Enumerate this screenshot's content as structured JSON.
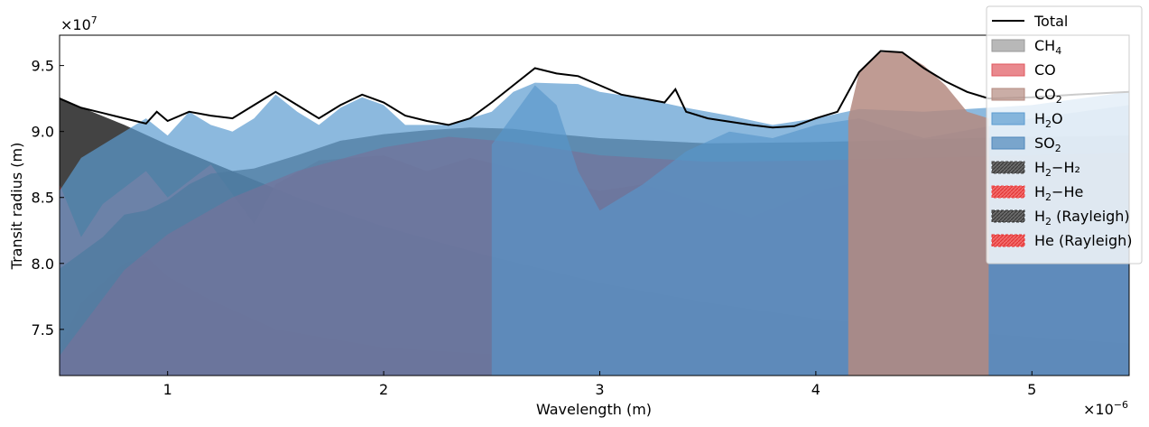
{
  "chart_data": {
    "type": "area",
    "xlabel": "Wavelength (m)",
    "ylabel": "Transit radius (m)",
    "x_offset_label": "×10",
    "x_offset_exp": "−6",
    "y_offset_label": "×10",
    "y_offset_exp": "7",
    "xlim": [
      0.5,
      5.45
    ],
    "ylim": [
      7.15,
      9.73
    ],
    "x_ticks": [
      {
        "value": 1,
        "label": "1"
      },
      {
        "value": 2,
        "label": "2"
      },
      {
        "value": 3,
        "label": "3"
      },
      {
        "value": 4,
        "label": "4"
      },
      {
        "value": 5,
        "label": "5"
      }
    ],
    "y_ticks": [
      {
        "value": 7.5,
        "label": "7.5"
      },
      {
        "value": 8.0,
        "label": "8.0"
      },
      {
        "value": 8.5,
        "label": "8.5"
      },
      {
        "value": 9.0,
        "label": "9.0"
      },
      {
        "value": 9.5,
        "label": "9.5"
      }
    ],
    "legend_position": "top-right",
    "legend": [
      {
        "key": "total",
        "kind": "line",
        "color": "#000000",
        "base": "Total",
        "sub": "",
        "rest": ""
      },
      {
        "key": "ch4",
        "kind": "patch",
        "color": "#9a9a9a",
        "base": "CH",
        "sub": "4",
        "rest": ""
      },
      {
        "key": "co",
        "kind": "patch",
        "color": "#e0575e",
        "base": "CO",
        "sub": "",
        "rest": ""
      },
      {
        "key": "co2",
        "kind": "patch",
        "color": "#b48a80",
        "base": "CO",
        "sub": "2",
        "rest": ""
      },
      {
        "key": "h2o",
        "kind": "patch",
        "color": "#5b9bd0",
        "base": "H",
        "sub": "2",
        "rest": "O"
      },
      {
        "key": "so2",
        "kind": "patch",
        "color": "#4f88bb",
        "base": "SO",
        "sub": "2",
        "rest": ""
      },
      {
        "key": "h2h2",
        "kind": "hatch",
        "color": "#4a4a4a",
        "base": "H",
        "sub": "2",
        "rest": "−H₂"
      },
      {
        "key": "h2he",
        "kind": "hatch",
        "color": "#f04a4a",
        "base": "H",
        "sub": "2",
        "rest": "−He"
      },
      {
        "key": "h2ray",
        "kind": "hatch",
        "color": "#333333",
        "base": "H",
        "sub": "2",
        "rest": " (Rayleigh)"
      },
      {
        "key": "heray",
        "kind": "hatch",
        "color": "#e63232",
        "base": "He (Rayleigh)",
        "sub": "",
        "rest": ""
      }
    ],
    "series": [
      {
        "key": "he_rayleigh",
        "color": "#c40000",
        "opacity": 0.85,
        "points": [
          [
            0.5,
            7.36
          ],
          [
            0.6,
            7.7
          ],
          [
            0.8,
            8.0
          ],
          [
            0.9,
            8.05
          ],
          [
            1.0,
            7.9
          ],
          [
            1.2,
            7.72
          ],
          [
            1.5,
            7.5
          ],
          [
            2.0,
            7.36
          ],
          [
            2.5,
            7.31
          ],
          [
            3.0,
            7.29
          ],
          [
            4.0,
            7.28
          ],
          [
            5.45,
            7.28
          ]
        ]
      },
      {
        "key": "h2_rayleigh",
        "color": "#222222",
        "opacity": 0.85,
        "points": [
          [
            0.5,
            9.25
          ],
          [
            0.8,
            9.05
          ],
          [
            1.0,
            8.9
          ],
          [
            1.3,
            8.7
          ],
          [
            1.6,
            8.5
          ],
          [
            2.0,
            8.28
          ],
          [
            2.5,
            8.05
          ],
          [
            3.0,
            7.85
          ],
          [
            3.5,
            7.7
          ],
          [
            4.0,
            7.58
          ],
          [
            4.5,
            7.5
          ],
          [
            5.0,
            7.44
          ],
          [
            5.45,
            7.39
          ]
        ]
      },
      {
        "key": "co",
        "color": "#d94a50",
        "opacity": 0.55,
        "points": [
          [
            0.5,
            8.6
          ],
          [
            0.6,
            8.2
          ],
          [
            0.7,
            8.45
          ],
          [
            0.9,
            8.7
          ],
          [
            1.0,
            8.5
          ],
          [
            1.2,
            8.75
          ],
          [
            1.4,
            8.3
          ],
          [
            1.5,
            8.6
          ],
          [
            1.7,
            8.78
          ],
          [
            2.0,
            8.82
          ],
          [
            2.2,
            8.7
          ],
          [
            2.4,
            8.8
          ],
          [
            2.6,
            8.72
          ],
          [
            2.8,
            8.62
          ],
          [
            3.0,
            8.55
          ],
          [
            3.2,
            8.6
          ],
          [
            3.5,
            8.45
          ],
          [
            3.7,
            8.35
          ],
          [
            4.0,
            8.55
          ],
          [
            4.3,
            8.65
          ],
          [
            4.6,
            8.7
          ],
          [
            5.0,
            8.5
          ],
          [
            5.2,
            8.2
          ],
          [
            5.45,
            8.3
          ]
        ]
      },
      {
        "key": "h2h2",
        "color": "#303030",
        "opacity": 0.75,
        "points": [
          [
            0.5,
            7.96
          ],
          [
            0.7,
            8.2
          ],
          [
            0.8,
            8.37
          ],
          [
            0.9,
            8.4
          ],
          [
            1.0,
            8.48
          ],
          [
            1.1,
            8.6
          ],
          [
            1.2,
            8.68
          ],
          [
            1.4,
            8.72
          ],
          [
            1.6,
            8.82
          ],
          [
            1.8,
            8.93
          ],
          [
            2.0,
            8.98
          ],
          [
            2.2,
            9.01
          ],
          [
            2.4,
            9.03
          ],
          [
            2.6,
            9.02
          ],
          [
            2.8,
            8.98
          ],
          [
            3.0,
            8.95
          ],
          [
            3.5,
            8.91
          ],
          [
            4.0,
            8.92
          ],
          [
            4.5,
            8.94
          ],
          [
            5.0,
            8.96
          ],
          [
            5.45,
            8.97
          ]
        ]
      },
      {
        "key": "h2he",
        "color": "#b0141e",
        "opacity": 0.7,
        "points": [
          [
            0.5,
            7.3
          ],
          [
            0.8,
            7.95
          ],
          [
            1.0,
            8.22
          ],
          [
            1.3,
            8.5
          ],
          [
            1.6,
            8.7
          ],
          [
            2.0,
            8.88
          ],
          [
            2.3,
            8.96
          ],
          [
            2.6,
            8.92
          ],
          [
            3.0,
            8.82
          ],
          [
            3.5,
            8.77
          ],
          [
            4.0,
            8.78
          ],
          [
            4.5,
            8.8
          ],
          [
            5.0,
            8.82
          ],
          [
            5.45,
            8.84
          ]
        ]
      },
      {
        "key": "so2",
        "color": "#4f88bb",
        "opacity": 0.65,
        "points": [
          [
            2.5,
            8.9
          ],
          [
            2.7,
            9.35
          ],
          [
            2.8,
            9.2
          ],
          [
            2.9,
            8.7
          ],
          [
            3.0,
            8.4
          ],
          [
            3.2,
            8.6
          ],
          [
            3.4,
            8.85
          ],
          [
            3.6,
            9.0
          ],
          [
            3.8,
            8.95
          ],
          [
            4.0,
            9.05
          ],
          [
            4.2,
            9.1
          ],
          [
            4.5,
            8.95
          ],
          [
            5.0,
            9.1
          ],
          [
            5.45,
            9.2
          ]
        ]
      },
      {
        "key": "h2o",
        "color": "#5b9bd0",
        "opacity": 0.7,
        "points": [
          [
            0.5,
            8.55
          ],
          [
            0.6,
            8.8
          ],
          [
            0.8,
            9.0
          ],
          [
            0.9,
            9.1
          ],
          [
            1.0,
            8.97
          ],
          [
            1.1,
            9.15
          ],
          [
            1.2,
            9.05
          ],
          [
            1.3,
            9.0
          ],
          [
            1.4,
            9.1
          ],
          [
            1.5,
            9.28
          ],
          [
            1.6,
            9.15
          ],
          [
            1.7,
            9.05
          ],
          [
            1.8,
            9.18
          ],
          [
            1.9,
            9.26
          ],
          [
            2.0,
            9.2
          ],
          [
            2.1,
            9.05
          ],
          [
            2.3,
            9.05
          ],
          [
            2.5,
            9.15
          ],
          [
            2.6,
            9.3
          ],
          [
            2.7,
            9.37
          ],
          [
            2.9,
            9.36
          ],
          [
            3.0,
            9.3
          ],
          [
            3.2,
            9.25
          ],
          [
            3.4,
            9.18
          ],
          [
            3.6,
            9.12
          ],
          [
            3.8,
            9.05
          ],
          [
            4.0,
            9.1
          ],
          [
            4.2,
            9.17
          ],
          [
            4.5,
            9.15
          ],
          [
            5.0,
            9.2
          ],
          [
            5.45,
            9.3
          ]
        ]
      },
      {
        "key": "co2",
        "color": "#b48a80",
        "opacity": 0.85,
        "points": [
          [
            4.15,
            9.1
          ],
          [
            4.2,
            9.45
          ],
          [
            4.3,
            9.6
          ],
          [
            4.4,
            9.6
          ],
          [
            4.5,
            9.5
          ],
          [
            4.6,
            9.35
          ],
          [
            4.7,
            9.15
          ],
          [
            4.8,
            9.1
          ]
        ]
      }
    ],
    "total": {
      "color": "#000000",
      "points": [
        [
          0.5,
          9.25
        ],
        [
          0.6,
          9.18
        ],
        [
          0.7,
          9.14
        ],
        [
          0.8,
          9.1
        ],
        [
          0.9,
          9.06
        ],
        [
          0.95,
          9.15
        ],
        [
          1.0,
          9.08
        ],
        [
          1.1,
          9.15
        ],
        [
          1.2,
          9.12
        ],
        [
          1.3,
          9.1
        ],
        [
          1.4,
          9.2
        ],
        [
          1.5,
          9.3
        ],
        [
          1.6,
          9.2
        ],
        [
          1.7,
          9.1
        ],
        [
          1.8,
          9.2
        ],
        [
          1.9,
          9.28
        ],
        [
          2.0,
          9.22
        ],
        [
          2.1,
          9.12
        ],
        [
          2.2,
          9.08
        ],
        [
          2.3,
          9.05
        ],
        [
          2.4,
          9.1
        ],
        [
          2.5,
          9.22
        ],
        [
          2.6,
          9.35
        ],
        [
          2.7,
          9.48
        ],
        [
          2.8,
          9.44
        ],
        [
          2.9,
          9.42
        ],
        [
          3.0,
          9.35
        ],
        [
          3.1,
          9.28
        ],
        [
          3.2,
          9.25
        ],
        [
          3.3,
          9.22
        ],
        [
          3.35,
          9.32
        ],
        [
          3.4,
          9.15
        ],
        [
          3.5,
          9.1
        ],
        [
          3.7,
          9.05
        ],
        [
          3.8,
          9.03
        ],
        [
          3.9,
          9.04
        ],
        [
          4.0,
          9.1
        ],
        [
          4.1,
          9.15
        ],
        [
          4.2,
          9.45
        ],
        [
          4.3,
          9.61
        ],
        [
          4.4,
          9.6
        ],
        [
          4.5,
          9.48
        ],
        [
          4.6,
          9.38
        ],
        [
          4.7,
          9.3
        ],
        [
          4.8,
          9.25
        ],
        [
          5.0,
          9.26
        ],
        [
          5.2,
          9.28
        ],
        [
          5.45,
          9.3
        ]
      ]
    }
  }
}
